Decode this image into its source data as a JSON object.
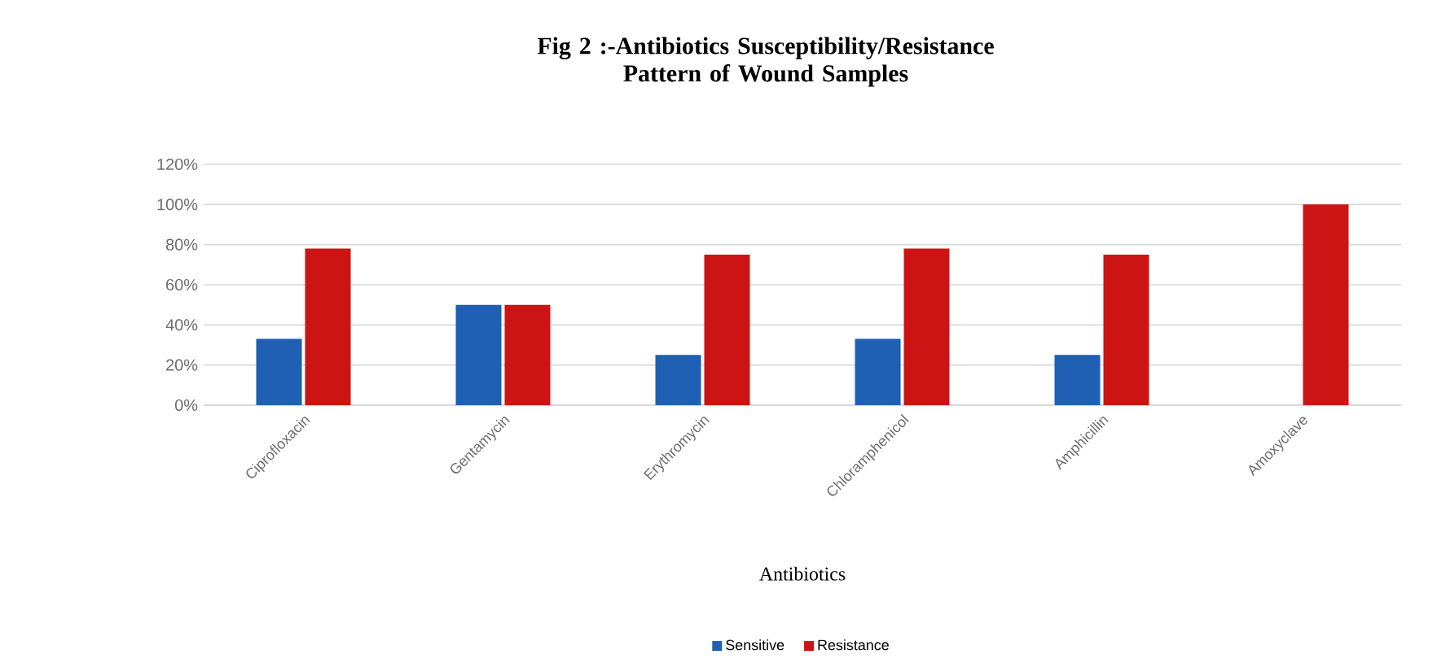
{
  "chart_data": {
    "type": "bar",
    "title": "Fig 2 :-Antibiotics Susceptibility/Resistance Pattern of Wound Samples",
    "xlabel": "Antibiotics",
    "categories": [
      "Ciprofloxacin",
      "Gentamycin",
      "Erythromycin",
      "Chloramphenicol",
      "Amphicillin",
      "Amoxyclave"
    ],
    "series": [
      {
        "name": "Sensitive",
        "color": "#1f5fb4",
        "values": [
          33,
          50,
          25,
          33,
          25,
          0
        ]
      },
      {
        "name": "Resistance",
        "color": "#cc1414",
        "values": [
          78,
          50,
          75,
          78,
          75,
          100
        ]
      }
    ],
    "ylim": [
      0,
      120
    ],
    "yticks": [
      {
        "value": 0,
        "label": "0%"
      },
      {
        "value": 20,
        "label": "20%"
      },
      {
        "value": 40,
        "label": "40%"
      },
      {
        "value": 60,
        "label": "60%"
      },
      {
        "value": 80,
        "label": "80%"
      },
      {
        "value": 100,
        "label": "100%"
      },
      {
        "value": 120,
        "label": "120%"
      }
    ],
    "grid": "y",
    "legend": "bottom"
  }
}
